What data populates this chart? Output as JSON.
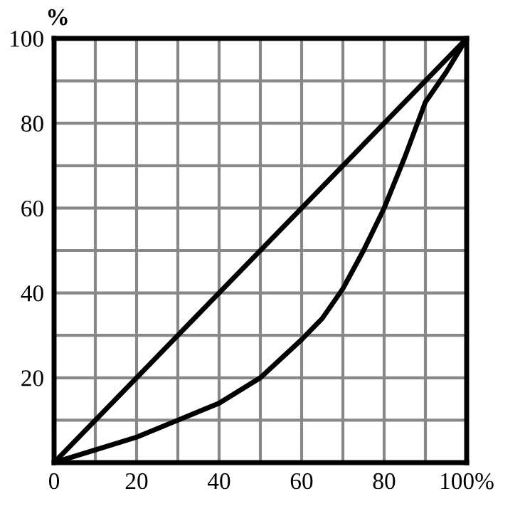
{
  "chart_data": {
    "type": "line",
    "ylabel": "%",
    "series": [
      {
        "color": "#000000",
        "x": [
          0,
          100
        ],
        "values": [
          0,
          100
        ]
      },
      {
        "color": "#000000",
        "x": [
          0,
          10,
          20,
          30,
          40,
          50,
          60,
          65,
          70,
          75,
          80,
          85,
          90,
          95,
          100
        ],
        "values": [
          0,
          3,
          6,
          10,
          14,
          20,
          29,
          34,
          41,
          50,
          60,
          72,
          85,
          92,
          100
        ]
      }
    ],
    "xlim": [
      0,
      100
    ],
    "ylim": [
      0,
      100
    ],
    "xticks": [
      0,
      {
        "value": 10,
        "label": null
      },
      20,
      {
        "value": 30,
        "label": null
      },
      40,
      {
        "value": 50,
        "label": null
      },
      60,
      {
        "value": 70,
        "label": null
      },
      80,
      {
        "value": 90,
        "label": null
      },
      {
        "value": 100,
        "label": "100%"
      }
    ],
    "yticks": [
      {
        "value": 10,
        "label": null
      },
      20,
      {
        "value": 30,
        "label": null
      },
      40,
      {
        "value": 50,
        "label": null
      },
      60,
      {
        "value": 70,
        "label": null
      },
      80,
      {
        "value": 90,
        "label": null
      },
      100
    ],
    "grid": true,
    "marker": "none",
    "line_style": "solid"
  }
}
